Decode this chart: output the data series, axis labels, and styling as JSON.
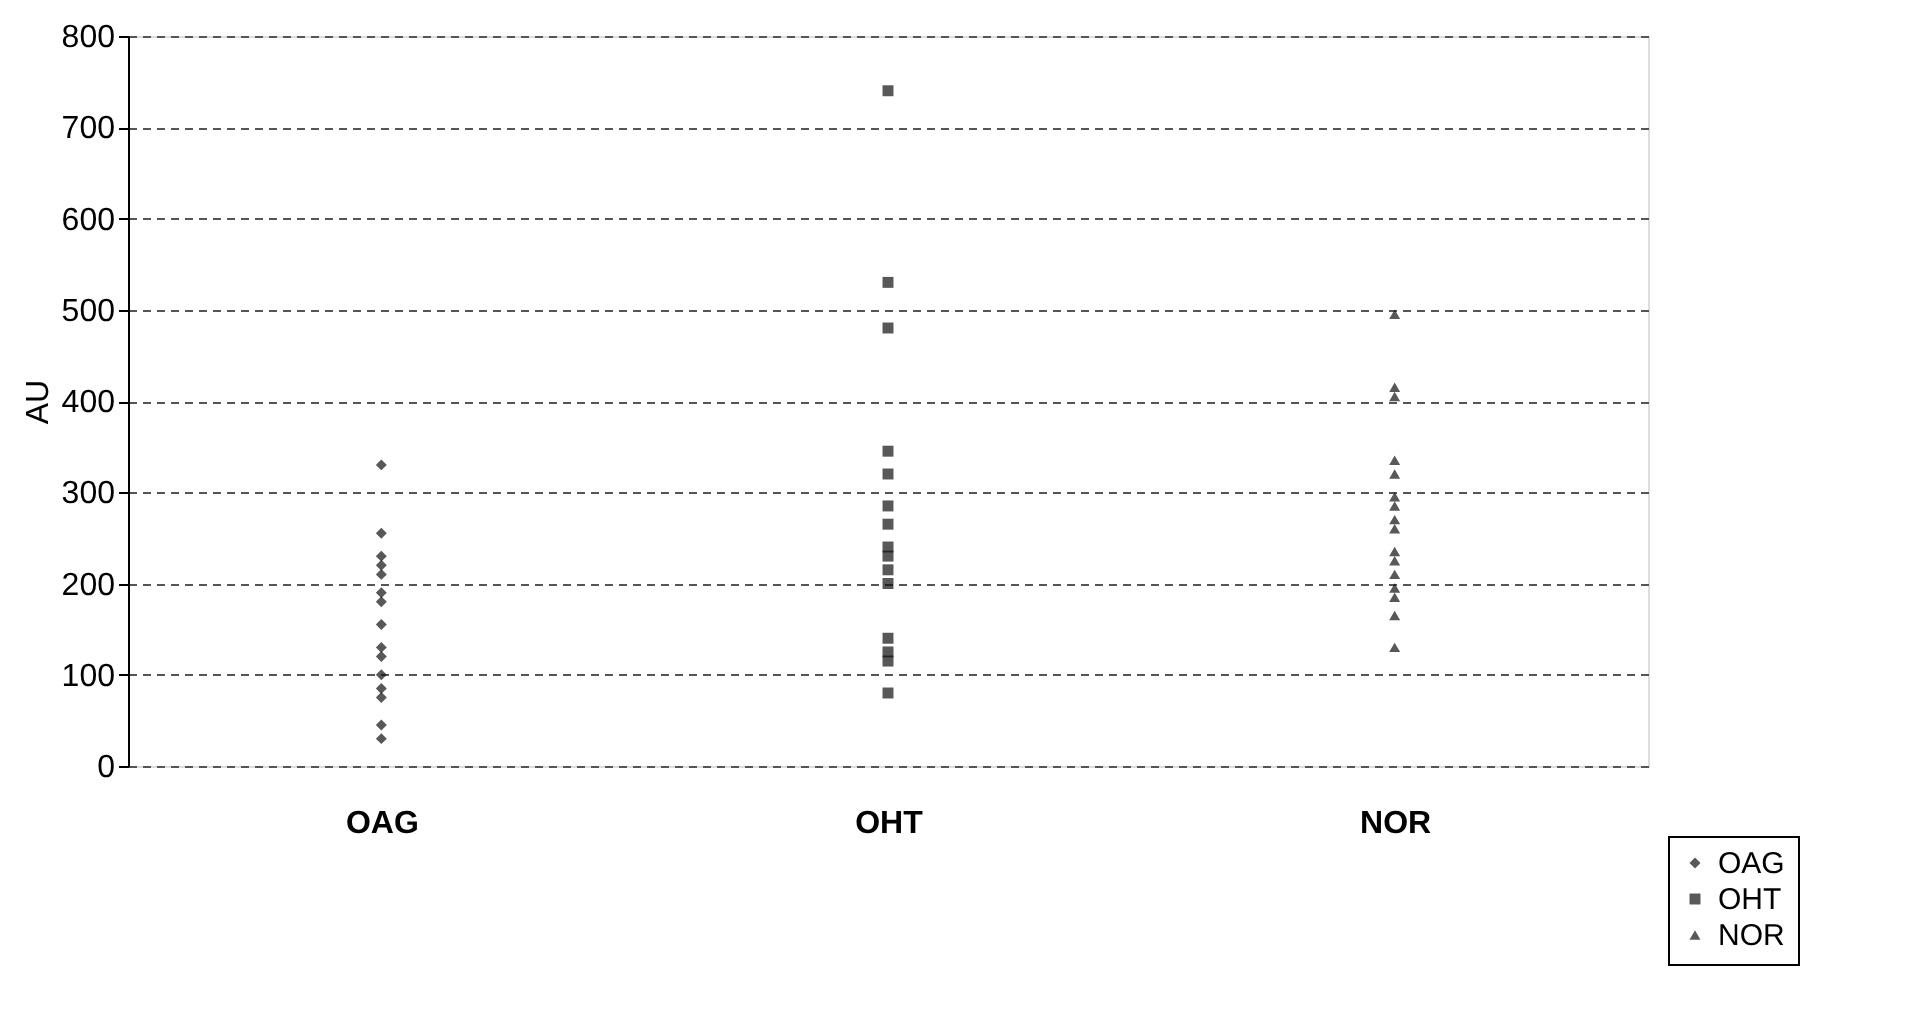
{
  "chart_data": {
    "type": "scatter",
    "ylabel": "AU",
    "categories": [
      "OAG",
      "OHT",
      "NOR"
    ],
    "ylim": [
      0,
      800
    ],
    "yticks": [
      0,
      100,
      200,
      300,
      400,
      500,
      600,
      700,
      800
    ],
    "grid": "y",
    "legend": "bottom right",
    "series": [
      {
        "name": "OAG",
        "color": "#111111",
        "marker": "diamond",
        "x": [
          "OAG",
          "OAG",
          "OAG",
          "OAG",
          "OAG",
          "OAG",
          "OAG",
          "OAG",
          "OAG",
          "OAG",
          "OAG",
          "OAG",
          "OAG",
          "OAG",
          "OAG"
        ],
        "values": [
          330,
          255,
          230,
          220,
          210,
          190,
          180,
          155,
          130,
          120,
          100,
          85,
          75,
          45,
          30
        ]
      },
      {
        "name": "OHT",
        "color": "#111111",
        "marker": "square",
        "x": [
          "OHT",
          "OHT",
          "OHT",
          "OHT",
          "OHT",
          "OHT",
          "OHT",
          "OHT",
          "OHT",
          "OHT",
          "OHT",
          "OHT",
          "OHT",
          "OHT",
          "OHT"
        ],
        "values": [
          740,
          530,
          480,
          345,
          320,
          285,
          265,
          240,
          230,
          215,
          200,
          140,
          125,
          115,
          80
        ]
      },
      {
        "name": "NOR",
        "color": "#111111",
        "marker": "triangle",
        "x": [
          "NOR",
          "NOR",
          "NOR",
          "NOR",
          "NOR",
          "NOR",
          "NOR",
          "NOR",
          "NOR",
          "NOR",
          "NOR",
          "NOR",
          "NOR",
          "NOR",
          "NOR",
          "NOR"
        ],
        "values": [
          495,
          415,
          405,
          335,
          320,
          295,
          285,
          270,
          260,
          235,
          225,
          210,
          195,
          185,
          165,
          130
        ]
      }
    ]
  }
}
